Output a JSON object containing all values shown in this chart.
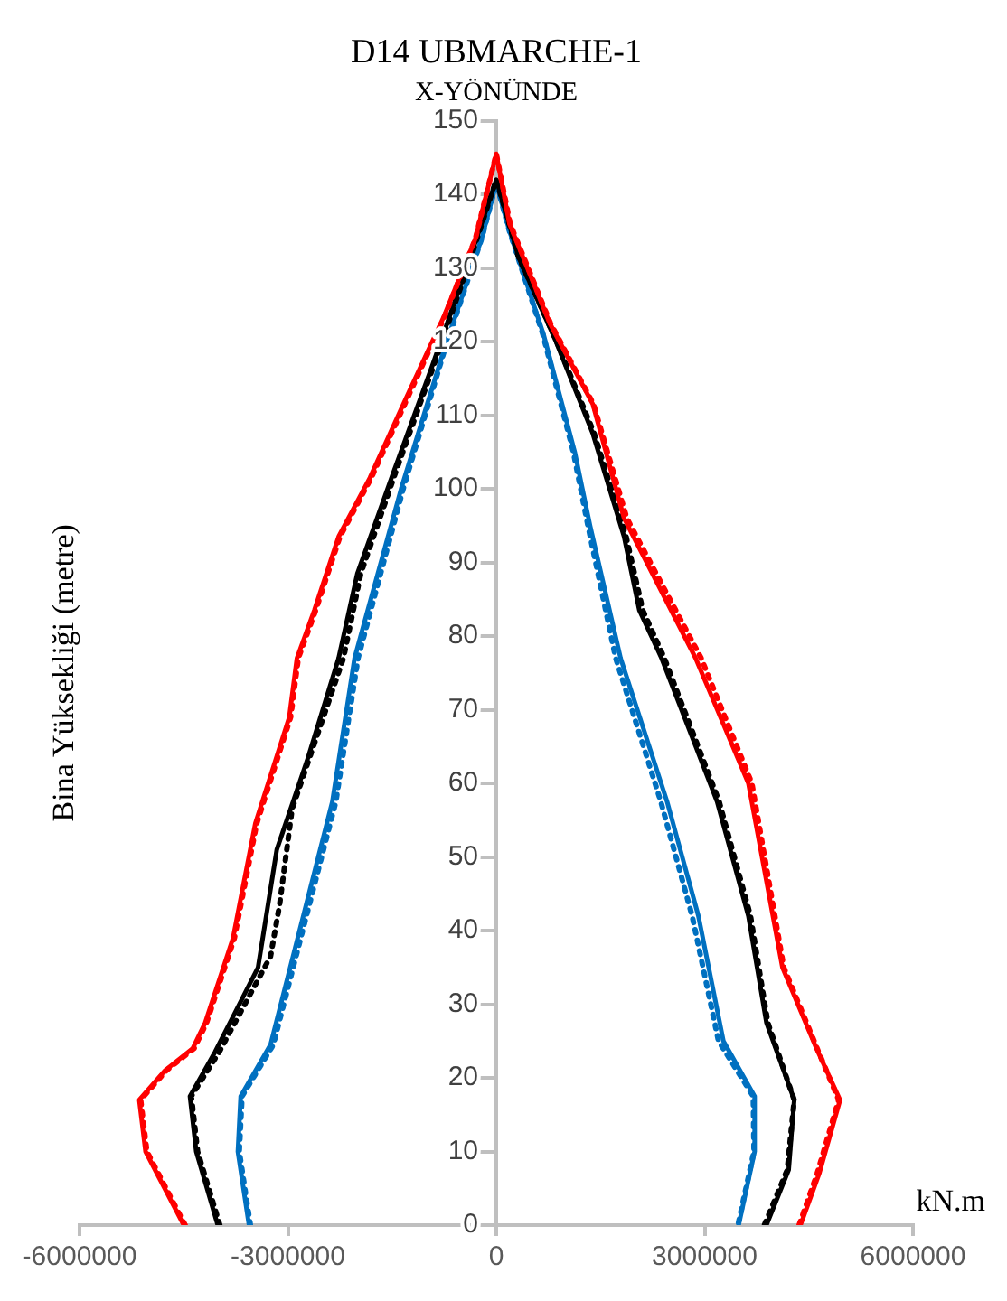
{
  "chart_data": {
    "type": "line",
    "title": "D14 UBMARCHE-1",
    "subtitle": "X-YÖNÜNDE",
    "xlabel": "kN.m",
    "ylabel": "Bina Yüksekliği (metre)",
    "xlim": [
      -6000000,
      6000000
    ],
    "xticks": [
      -6000000,
      -3000000,
      0,
      3000000,
      6000000
    ],
    "ylim": [
      0,
      150
    ],
    "yticks": [
      0,
      10,
      20,
      30,
      40,
      50,
      60,
      70,
      80,
      90,
      100,
      110,
      120,
      130,
      140,
      150
    ],
    "grid": false,
    "legend": false,
    "marker": "none",
    "series": [
      {
        "color": "#ff0000",
        "line_style": "solid",
        "x": [
          -4500000,
          -5050000,
          -5140000,
          -4770000,
          -4370000,
          -4190000,
          -3790000,
          -3470000,
          -2980000,
          -2870000,
          -2620000,
          -2270000,
          -1820000,
          -1290000,
          -750000,
          -300000,
          0,
          190000,
          770000,
          1390000,
          1840000,
          2870000,
          3630000,
          4120000,
          4610000,
          4950000,
          4650000,
          4380000
        ],
        "values": [
          0,
          10,
          17,
          21,
          24,
          27.5,
          39,
          54.5,
          69,
          77,
          83.5,
          93.5,
          101.5,
          112.5,
          123.5,
          134,
          145.5,
          136,
          122.5,
          111.5,
          96,
          77,
          60,
          35,
          24,
          17,
          7,
          0
        ]
      },
      {
        "color": "#ff0000",
        "line_style": "dotted",
        "x": [
          -4480000,
          -5030000,
          -5120000,
          -4750000,
          -4350000,
          -4170000,
          -3770000,
          -3450000,
          -2960000,
          -2850000,
          -2600000,
          -2250000,
          -1800000,
          -1270000,
          -740000,
          -300000,
          0,
          200000,
          780000,
          1400000,
          1880000,
          2950000,
          3680000,
          4140000,
          4620000,
          4930000,
          4620000,
          4360000
        ],
        "values": [
          0,
          10,
          17,
          21,
          24,
          27.5,
          39,
          54.5,
          69,
          77,
          83.5,
          93.5,
          101.5,
          112.5,
          123.5,
          134,
          145.5,
          136,
          122.5,
          111.5,
          96,
          77,
          60,
          35,
          24,
          17,
          7,
          0
        ]
      },
      {
        "color": "#000000",
        "line_style": "solid",
        "x": [
          -4010000,
          -4320000,
          -4410000,
          -4050000,
          -3430000,
          -3160000,
          -2710000,
          -2270000,
          -2000000,
          -1470000,
          -930000,
          -390000,
          0,
          320000,
          860000,
          1390000,
          1840000,
          2060000,
          2380000,
          3180000,
          3630000,
          3890000,
          4290000,
          4210000,
          3890000
        ],
        "values": [
          0,
          10,
          17.5,
          23.5,
          35,
          51,
          63.5,
          77,
          88.5,
          102.5,
          116.5,
          131,
          142,
          131.5,
          120,
          107.5,
          93.5,
          83.5,
          77,
          57.5,
          42,
          27.5,
          17,
          7.5,
          0
        ]
      },
      {
        "color": "#000000",
        "line_style": "dotted",
        "x": [
          -3980000,
          -4300000,
          -4390000,
          -3990000,
          -3250000,
          -3120000,
          -2940000,
          -2200000,
          -1950000,
          -1440000,
          -910000,
          -380000,
          0,
          320000,
          870000,
          1410000,
          1870000,
          2110000,
          2420000,
          3210000,
          3660000,
          3910000,
          4290000,
          4190000,
          3860000
        ],
        "values": [
          0,
          10,
          17.5,
          23.5,
          36.5,
          43.5,
          56.5,
          77,
          88.5,
          102.5,
          116.5,
          131,
          142,
          131.5,
          120,
          107.5,
          93.5,
          83.5,
          77,
          57.5,
          42,
          27.5,
          17,
          7.5,
          0
        ]
      },
      {
        "color": "#0070c0",
        "line_style": "solid",
        "x": [
          -3560000,
          -3720000,
          -3680000,
          -3250000,
          -2360000,
          -2040000,
          -1370000,
          -750000,
          -210000,
          0,
          190000,
          680000,
          1130000,
          1350000,
          1790000,
          2460000,
          2910000,
          3270000,
          3720000,
          3720000,
          3490000
        ],
        "values": [
          0,
          10,
          17.5,
          24.5,
          57.5,
          77,
          100,
          119,
          134,
          141.5,
          135,
          121,
          105,
          95,
          77,
          57.5,
          42,
          25,
          17.5,
          10,
          0
        ]
      },
      {
        "color": "#0070c0",
        "line_style": "dotted",
        "x": [
          -3540000,
          -3700000,
          -3660000,
          -3210000,
          -2310000,
          -1990000,
          -1340000,
          -740000,
          -210000,
          0,
          190000,
          670000,
          1110000,
          1320000,
          1720000,
          2370000,
          2820000,
          3200000,
          3700000,
          3710000,
          3480000
        ],
        "values": [
          0,
          10,
          17.5,
          24.5,
          57.5,
          77,
          100,
          119,
          134,
          141.5,
          135,
          121,
          105,
          95,
          77,
          57.5,
          42,
          25,
          17.5,
          10,
          0
        ]
      }
    ]
  }
}
